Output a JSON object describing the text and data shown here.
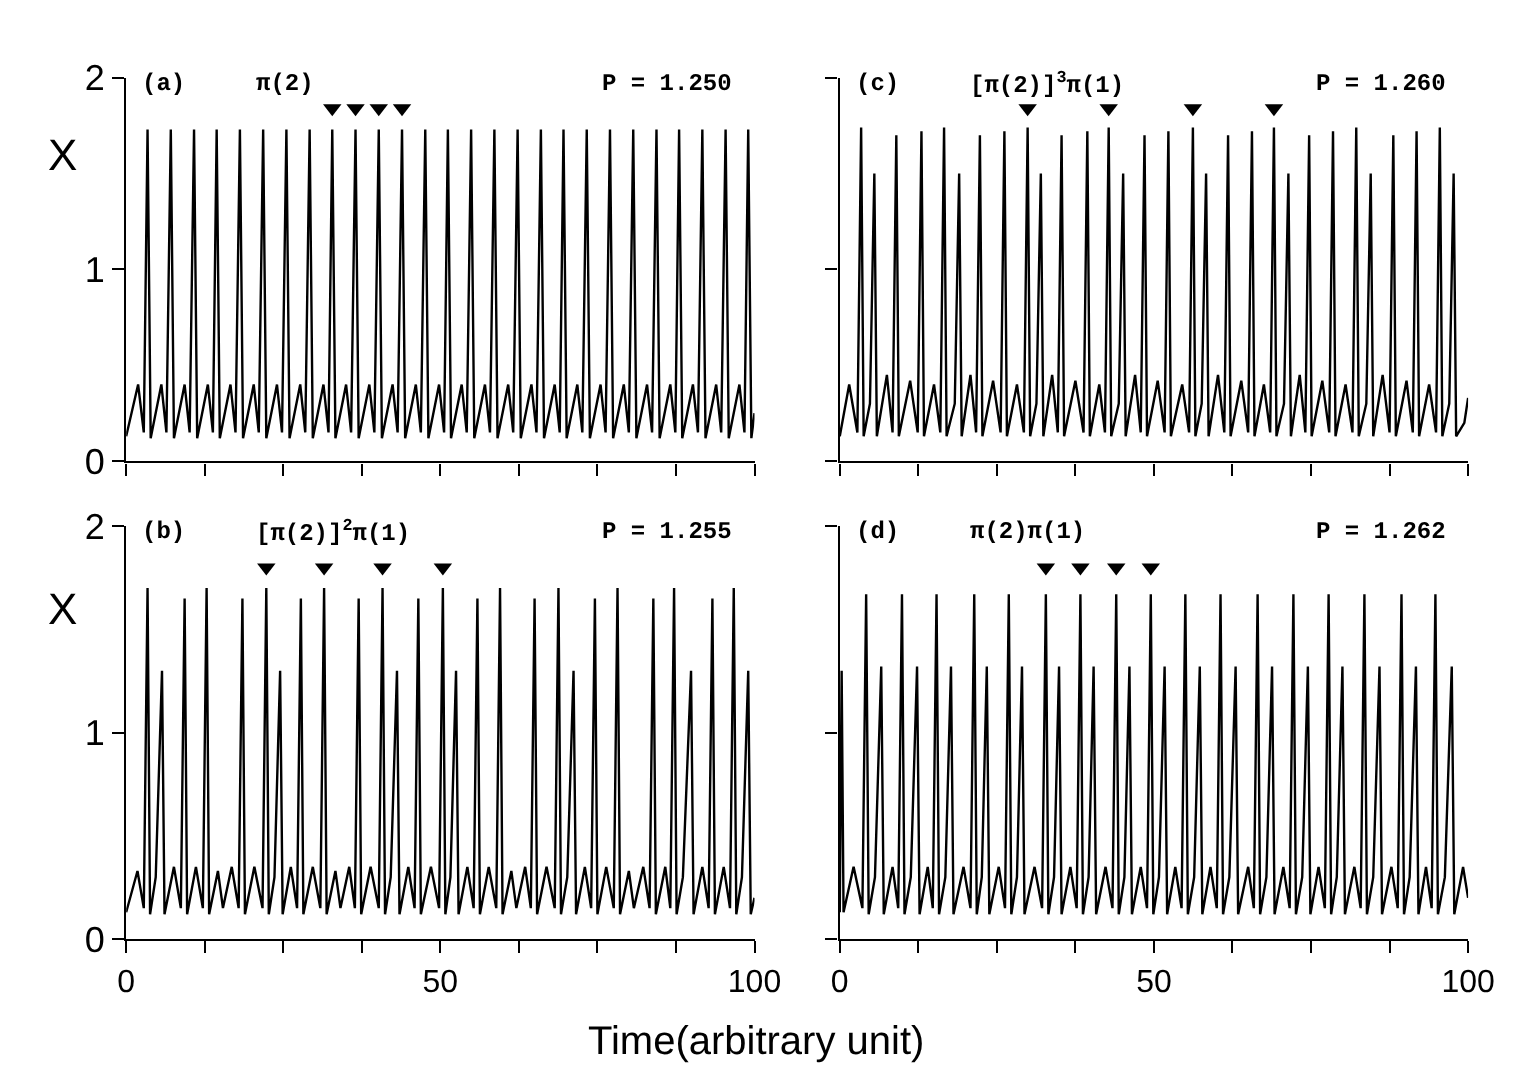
{
  "chart_data": [
    {
      "type": "line",
      "annotations": [
        "(a)",
        "π(2)",
        "P = 1.250"
      ],
      "ylabel": "X",
      "xlim": [
        0,
        100
      ],
      "ylim": [
        0,
        2
      ],
      "xticks": [
        0,
        {
          "value": 12.5,
          "label": null
        },
        {
          "value": 25,
          "label": null
        },
        {
          "value": 37.5,
          "label": null
        },
        50,
        {
          "value": 62.5,
          "label": null
        },
        {
          "value": 75,
          "label": null
        },
        {
          "value": 87.5,
          "label": null
        },
        100
      ],
      "yticks": [
        0,
        1,
        2
      ],
      "tick_labels": "y",
      "series": [
        {
          "color": "#000000",
          "x": [
            0,
            1.9,
            2.8,
            3.4,
            3.9,
            5.6,
            6.4,
            7.1,
            7.6,
            9.3,
            10.1,
            10.8,
            11.3,
            13.0,
            13.8,
            14.4,
            14.9,
            16.6,
            17.4,
            18.1,
            18.6,
            20.3,
            21.1,
            21.8,
            22.3,
            24.0,
            24.8,
            25.5,
            26.0,
            27.7,
            28.5,
            29.2,
            29.7,
            31.4,
            32.2,
            32.8,
            33.3,
            35.0,
            35.8,
            36.5,
            37.0,
            38.7,
            39.5,
            40.2,
            40.7,
            42.4,
            43.2,
            43.9,
            44.4,
            46.1,
            46.9,
            47.6,
            48.1,
            49.8,
            50.6,
            51.2,
            51.7,
            53.4,
            54.2,
            54.9,
            55.4,
            57.1,
            57.9,
            58.6,
            59.1,
            60.8,
            61.6,
            62.3,
            62.8,
            64.5,
            65.3,
            66.0,
            66.5,
            68.2,
            69.0,
            69.6,
            70.1,
            71.8,
            72.6,
            73.3,
            73.8,
            75.5,
            76.3,
            77.0,
            77.5,
            79.2,
            80.0,
            80.7,
            81.2,
            82.9,
            83.7,
            84.4,
            84.9,
            86.6,
            87.4,
            88.0,
            88.5,
            90.2,
            91.0,
            91.7,
            92.2,
            93.9,
            94.7,
            95.4,
            95.9,
            97.6,
            98.4,
            99.0,
            99.5,
            100
          ],
          "values": [
            0.13,
            0.4,
            0.15,
            1.73,
            0.12,
            0.4,
            0.15,
            1.73,
            0.12,
            0.4,
            0.15,
            1.73,
            0.12,
            0.4,
            0.15,
            1.73,
            0.12,
            0.4,
            0.15,
            1.73,
            0.12,
            0.4,
            0.15,
            1.73,
            0.12,
            0.4,
            0.15,
            1.73,
            0.12,
            0.4,
            0.15,
            1.73,
            0.12,
            0.4,
            0.15,
            1.73,
            0.12,
            0.4,
            0.15,
            1.73,
            0.12,
            0.4,
            0.15,
            1.73,
            0.12,
            0.4,
            0.15,
            1.73,
            0.12,
            0.4,
            0.15,
            1.73,
            0.12,
            0.4,
            0.15,
            1.73,
            0.12,
            0.4,
            0.15,
            1.73,
            0.12,
            0.4,
            0.15,
            1.73,
            0.12,
            0.4,
            0.15,
            1.73,
            0.12,
            0.4,
            0.15,
            1.73,
            0.12,
            0.4,
            0.15,
            1.73,
            0.12,
            0.4,
            0.15,
            1.73,
            0.12,
            0.4,
            0.15,
            1.73,
            0.12,
            0.4,
            0.15,
            1.73,
            0.12,
            0.4,
            0.15,
            1.73,
            0.12,
            0.4,
            0.15,
            1.73,
            0.12,
            0.4,
            0.15,
            1.73,
            0.12,
            0.4,
            0.15,
            1.73,
            0.12,
            0.4,
            0.15,
            1.73,
            0.12,
            0.25
          ]
        },
        {
          "type": "scatter",
          "marker": "triangle",
          "color": "#000000",
          "x": [
            32.8,
            36.5,
            40.2,
            43.9
          ],
          "values": [
            1.84,
            1.84,
            1.84,
            1.84
          ]
        }
      ]
    },
    {
      "type": "line",
      "annotations": [
        "(c)",
        "[π(2)]$^{3}$π(1)",
        "P = 1.260"
      ],
      "xlim": [
        0,
        100
      ],
      "ylim": [
        0,
        2
      ],
      "xticks": [
        0,
        {
          "value": 12.5,
          "label": null
        },
        {
          "value": 25,
          "label": null
        },
        {
          "value": 37.5,
          "label": null
        },
        50,
        {
          "value": 62.5,
          "label": null
        },
        {
          "value": 75,
          "label": null
        },
        {
          "value": 87.5,
          "label": null
        },
        100
      ],
      "yticks": [
        {
          "value": 0,
          "label": null
        },
        {
          "value": 1,
          "label": null
        },
        {
          "value": 2,
          "label": null
        }
      ],
      "tick_labels": false,
      "series": [
        {
          "color": "#000000",
          "x": [
            0,
            1.5,
            2.8,
            3.4,
            3.8,
            4.8,
            5.5,
            5.9,
            7.5,
            8.4,
            9.0,
            9.4,
            11.2,
            12.4,
            13.0,
            13.4,
            15.0,
            16.0,
            16.6,
            17.0,
            18.3,
            19.0,
            19.4,
            20.8,
            21.7,
            22.3,
            22.7,
            24.4,
            25.6,
            26.2,
            26.6,
            28.2,
            29.3,
            29.9,
            30.3,
            31.3,
            32.0,
            32.4,
            33.8,
            34.7,
            35.3,
            35.7,
            37.5,
            38.8,
            39.4,
            39.8,
            41.3,
            42.2,
            42.8,
            43.2,
            44.4,
            45.1,
            45.5,
            47.0,
            47.9,
            48.5,
            48.9,
            50.6,
            51.7,
            52.3,
            52.7,
            54.5,
            55.6,
            56.2,
            56.6,
            57.6,
            58.3,
            58.7,
            60.2,
            61.2,
            61.8,
            62.2,
            63.9,
            65.0,
            65.6,
            66.0,
            67.5,
            68.5,
            69.1,
            69.5,
            70.7,
            71.4,
            71.8,
            73.2,
            74.1,
            74.7,
            75.1,
            76.8,
            77.9,
            78.5,
            78.9,
            80.5,
            81.6,
            82.2,
            82.6,
            83.8,
            84.5,
            84.9,
            86.4,
            87.5,
            88.1,
            88.5,
            90.2,
            91.2,
            91.8,
            92.2,
            93.8,
            94.9,
            95.5,
            95.9,
            97.0,
            97.7,
            98.1,
            99.4,
            100
          ],
          "values": [
            0.13,
            0.4,
            0.15,
            1.74,
            0.13,
            0.3,
            1.5,
            0.13,
            0.45,
            0.15,
            1.7,
            0.13,
            0.42,
            0.15,
            1.72,
            0.13,
            0.4,
            0.15,
            1.74,
            0.13,
            0.3,
            1.5,
            0.13,
            0.45,
            0.15,
            1.7,
            0.13,
            0.42,
            0.15,
            1.72,
            0.13,
            0.4,
            0.15,
            1.74,
            0.13,
            0.3,
            1.5,
            0.13,
            0.45,
            0.15,
            1.7,
            0.13,
            0.42,
            0.15,
            1.72,
            0.13,
            0.4,
            0.15,
            1.74,
            0.13,
            0.3,
            1.5,
            0.13,
            0.45,
            0.15,
            1.7,
            0.13,
            0.42,
            0.15,
            1.72,
            0.13,
            0.4,
            0.15,
            1.74,
            0.13,
            0.3,
            1.5,
            0.13,
            0.45,
            0.15,
            1.7,
            0.13,
            0.42,
            0.15,
            1.72,
            0.13,
            0.4,
            0.15,
            1.74,
            0.13,
            0.3,
            1.5,
            0.13,
            0.45,
            0.15,
            1.7,
            0.13,
            0.42,
            0.15,
            1.72,
            0.13,
            0.4,
            0.15,
            1.74,
            0.13,
            0.3,
            1.5,
            0.13,
            0.45,
            0.15,
            1.7,
            0.13,
            0.42,
            0.15,
            1.72,
            0.13,
            0.4,
            0.15,
            1.74,
            0.13,
            0.3,
            1.5,
            0.13,
            0.2,
            0.33
          ]
        },
        {
          "type": "scatter",
          "marker": "triangle",
          "color": "#000000",
          "x": [
            29.9,
            42.8,
            56.2,
            69.1
          ],
          "values": [
            1.84,
            1.84,
            1.84,
            1.84
          ]
        }
      ]
    },
    {
      "type": "line",
      "annotations": [
        "(b)",
        "[π(2)]$^{2}$π(1)",
        "P = 1.255"
      ],
      "ylabel": "X",
      "xlabel": "Time(arbitrary unit)",
      "xlim": [
        0,
        100
      ],
      "ylim": [
        0,
        2
      ],
      "xticks": [
        0,
        {
          "value": 12.5,
          "label": null
        },
        {
          "value": 25,
          "label": null
        },
        {
          "value": 37.5,
          "label": null
        },
        50,
        {
          "value": 62.5,
          "label": null
        },
        {
          "value": 75,
          "label": null
        },
        {
          "value": 87.5,
          "label": null
        },
        100
      ],
      "yticks": [
        0,
        1,
        2
      ],
      "series": [
        {
          "color": "#000000",
          "x": [
            0,
            1.8,
            2.8,
            3.4,
            3.8,
            4.7,
            5.7,
            6.1,
            7.6,
            8.7,
            9.3,
            9.7,
            11.1,
            12.2,
            12.8,
            13.2,
            14.6,
            15.4,
            16.8,
            17.9,
            18.5,
            18.9,
            20.4,
            21.7,
            22.3,
            22.7,
            23.6,
            24.5,
            24.9,
            26.2,
            27.2,
            27.8,
            28.2,
            29.7,
            30.9,
            31.5,
            31.9,
            33.3,
            34.1,
            35.5,
            36.4,
            37.0,
            37.4,
            38.9,
            40.2,
            40.8,
            41.2,
            42.1,
            43.1,
            43.5,
            44.9,
            45.9,
            46.5,
            46.9,
            48.5,
            49.8,
            50.4,
            50.8,
            51.6,
            52.5,
            52.9,
            54.3,
            55.3,
            55.9,
            56.3,
            57.7,
            58.9,
            59.5,
            59.9,
            61.3,
            62.1,
            63.5,
            64.4,
            65.0,
            65.4,
            66.9,
            68.2,
            68.8,
            69.2,
            70.2,
            71.2,
            71.6,
            73.0,
            74.0,
            74.6,
            75.0,
            76.4,
            77.6,
            78.2,
            78.6,
            80.0,
            80.8,
            82.3,
            83.3,
            83.9,
            84.3,
            85.8,
            86.6,
            87.2,
            87.6,
            88.6,
            89.9,
            90.3,
            91.7,
            92.7,
            93.3,
            93.7,
            95.1,
            96.1,
            96.7,
            97.1,
            98.0,
            99.0,
            99.4,
            100
          ],
          "values": [
            0.13,
            0.33,
            0.15,
            1.7,
            0.12,
            0.3,
            1.3,
            0.12,
            0.35,
            0.15,
            1.65,
            0.12,
            0.35,
            0.15,
            1.7,
            0.12,
            0.33,
            0.15,
            0.35,
            0.15,
            1.65,
            0.12,
            0.35,
            0.15,
            1.7,
            0.12,
            0.3,
            1.3,
            0.12,
            0.35,
            0.15,
            1.65,
            0.12,
            0.35,
            0.15,
            1.7,
            0.12,
            0.33,
            0.15,
            0.35,
            0.15,
            1.65,
            0.12,
            0.35,
            0.15,
            1.7,
            0.12,
            0.3,
            1.3,
            0.12,
            0.35,
            0.15,
            1.65,
            0.12,
            0.35,
            0.15,
            1.7,
            0.12,
            0.3,
            1.3,
            0.12,
            0.35,
            0.15,
            1.65,
            0.12,
            0.35,
            0.15,
            1.7,
            0.12,
            0.33,
            0.15,
            0.35,
            0.15,
            1.65,
            0.12,
            0.35,
            0.15,
            1.7,
            0.12,
            0.3,
            1.3,
            0.12,
            0.35,
            0.15,
            1.65,
            0.12,
            0.35,
            0.15,
            1.7,
            0.12,
            0.33,
            0.15,
            0.35,
            0.15,
            1.65,
            0.12,
            0.35,
            0.15,
            1.7,
            0.12,
            0.3,
            1.3,
            0.12,
            0.35,
            0.15,
            1.65,
            0.12,
            0.35,
            0.15,
            1.7,
            0.12,
            0.3,
            1.3,
            0.12,
            0.2
          ]
        },
        {
          "type": "scatter",
          "marker": "triangle",
          "color": "#000000",
          "x": [
            22.3,
            31.5,
            40.8,
            50.4
          ],
          "values": [
            1.8,
            1.8,
            1.8,
            1.8
          ]
        }
      ]
    },
    {
      "type": "line",
      "annotations": [
        "(d)",
        "π(2)π(1)",
        "P = 1.262"
      ],
      "xlim": [
        0,
        100
      ],
      "ylim": [
        0,
        2
      ],
      "xticks": [
        0,
        {
          "value": 12.5,
          "label": null
        },
        {
          "value": 25,
          "label": null
        },
        {
          "value": 37.5,
          "label": null
        },
        50,
        {
          "value": 62.5,
          "label": null
        },
        {
          "value": 75,
          "label": null
        },
        {
          "value": 87.5,
          "label": null
        },
        100
      ],
      "yticks": [
        {
          "value": 0,
          "label": null
        },
        {
          "value": 1,
          "label": null
        },
        {
          "value": 2,
          "label": null
        }
      ],
      "tick_labels": "x",
      "series": [
        {
          "color": "#000000",
          "x": [
            0,
            0.3,
            0.6,
            2.2,
            3.6,
            4.2,
            4.6,
            5.6,
            6.6,
            7.0,
            8.4,
            9.3,
            9.9,
            10.3,
            11.3,
            12.3,
            12.7,
            14.0,
            14.8,
            15.4,
            15.8,
            16.8,
            17.7,
            18.1,
            19.7,
            20.8,
            21.4,
            21.8,
            22.6,
            23.4,
            23.8,
            25.3,
            26.3,
            26.9,
            27.3,
            28.2,
            29.0,
            29.4,
            31.0,
            32.2,
            32.8,
            33.2,
            34.1,
            34.9,
            35.3,
            36.7,
            37.7,
            38.3,
            38.7,
            39.6,
            40.4,
            40.8,
            42.3,
            43.4,
            44.0,
            44.4,
            45.3,
            46.1,
            46.5,
            47.9,
            48.9,
            49.5,
            49.9,
            50.8,
            51.7,
            52.1,
            53.4,
            54.4,
            55.0,
            55.4,
            56.4,
            57.3,
            57.7,
            59.0,
            60.0,
            60.6,
            61.0,
            62.0,
            63.0,
            63.4,
            65.0,
            65.9,
            66.5,
            66.9,
            67.9,
            68.8,
            69.2,
            70.6,
            71.6,
            72.2,
            72.6,
            73.6,
            74.5,
            74.9,
            76.2,
            77.2,
            77.8,
            78.2,
            79.1,
            80.0,
            80.4,
            81.9,
            82.9,
            83.5,
            83.9,
            84.9,
            85.9,
            86.3,
            87.8,
            88.8,
            89.4,
            89.8,
            90.7,
            91.7,
            92.1,
            93.3,
            94.2,
            94.8,
            95.2,
            96.3,
            97.4,
            97.8,
            99.2,
            100
          ],
          "values": [
            0.13,
            1.3,
            0.13,
            0.35,
            0.15,
            1.67,
            0.12,
            0.3,
            1.32,
            0.12,
            0.35,
            0.15,
            1.67,
            0.12,
            0.3,
            1.32,
            0.12,
            0.35,
            0.15,
            1.67,
            0.12,
            0.3,
            1.32,
            0.12,
            0.35,
            0.15,
            1.67,
            0.12,
            0.3,
            1.32,
            0.12,
            0.35,
            0.15,
            1.67,
            0.12,
            0.3,
            1.32,
            0.12,
            0.35,
            0.15,
            1.67,
            0.12,
            0.3,
            1.32,
            0.12,
            0.35,
            0.15,
            1.67,
            0.12,
            0.3,
            1.32,
            0.12,
            0.35,
            0.15,
            1.67,
            0.12,
            0.3,
            1.32,
            0.12,
            0.35,
            0.15,
            1.67,
            0.12,
            0.3,
            1.32,
            0.12,
            0.35,
            0.15,
            1.67,
            0.12,
            0.3,
            1.32,
            0.12,
            0.35,
            0.15,
            1.67,
            0.12,
            0.3,
            1.32,
            0.12,
            0.35,
            0.15,
            1.67,
            0.12,
            0.3,
            1.32,
            0.12,
            0.35,
            0.15,
            1.67,
            0.12,
            0.3,
            1.32,
            0.12,
            0.35,
            0.15,
            1.67,
            0.12,
            0.3,
            1.32,
            0.12,
            0.35,
            0.15,
            1.67,
            0.12,
            0.3,
            1.32,
            0.12,
            0.35,
            0.15,
            1.67,
            0.12,
            0.3,
            1.32,
            0.12,
            0.35,
            0.15,
            1.67,
            0.12,
            0.3,
            1.32,
            0.12,
            0.35,
            0.2
          ]
        },
        {
          "type": "scatter",
          "marker": "triangle",
          "color": "#000000",
          "x": [
            32.8,
            38.3,
            44.0,
            49.5
          ],
          "values": [
            1.8,
            1.8,
            1.8,
            1.8
          ]
        }
      ]
    }
  ]
}
